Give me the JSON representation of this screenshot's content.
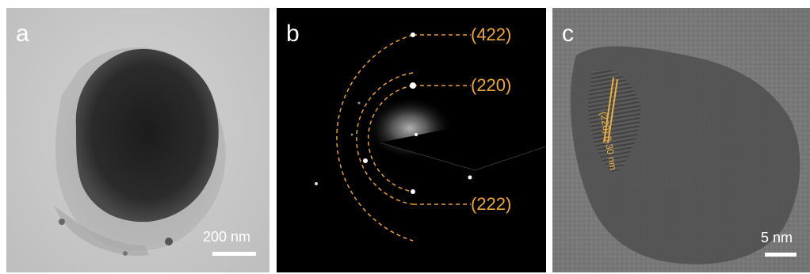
{
  "panels": {
    "a": {
      "label": "a",
      "scale_text": "200 nm"
    },
    "b": {
      "label": "b",
      "rings": [
        "(422)",
        "(220)",
        "(222)"
      ]
    },
    "c": {
      "label": "c",
      "scale_text": "5 nm",
      "fringe_text": "(220) 0.30 nm"
    }
  },
  "colors": {
    "ring_dash": "#e8a030",
    "label_text": "#f0a830",
    "white": "#ffffff"
  }
}
